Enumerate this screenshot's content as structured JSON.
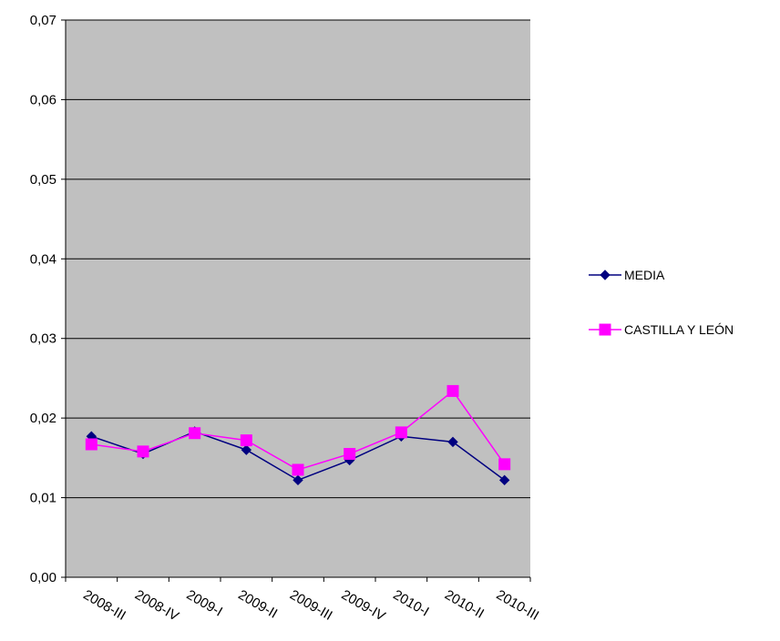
{
  "chart_data": {
    "type": "line",
    "categories": [
      "2008-III",
      "2008-IV",
      "2009-I",
      "2009-II",
      "2009-III",
      "2009-IV",
      "2010-I",
      "2010-II",
      "2010-III"
    ],
    "series": [
      {
        "name": "MEDIA",
        "values": [
          0.0177,
          0.0155,
          0.0183,
          0.016,
          0.0122,
          0.0147,
          0.0177,
          0.017,
          0.0122
        ],
        "color": "#000080",
        "marker": "diamond"
      },
      {
        "name": "CASTILLA Y LEÓN",
        "values": [
          0.0167,
          0.0158,
          0.0181,
          0.0172,
          0.0135,
          0.0155,
          0.0182,
          0.0234,
          0.0142
        ],
        "color": "#ff00ff",
        "marker": "square"
      }
    ],
    "y_tick_labels": [
      "0,00",
      "0,01",
      "0,02",
      "0,03",
      "0,04",
      "0,05",
      "0,06",
      "0,07"
    ],
    "ylim": [
      0,
      0.07
    ],
    "title": "",
    "xlabel": "",
    "ylabel": "",
    "grid": true,
    "legend_position": "right",
    "plot_background": "#c0c0c0"
  }
}
